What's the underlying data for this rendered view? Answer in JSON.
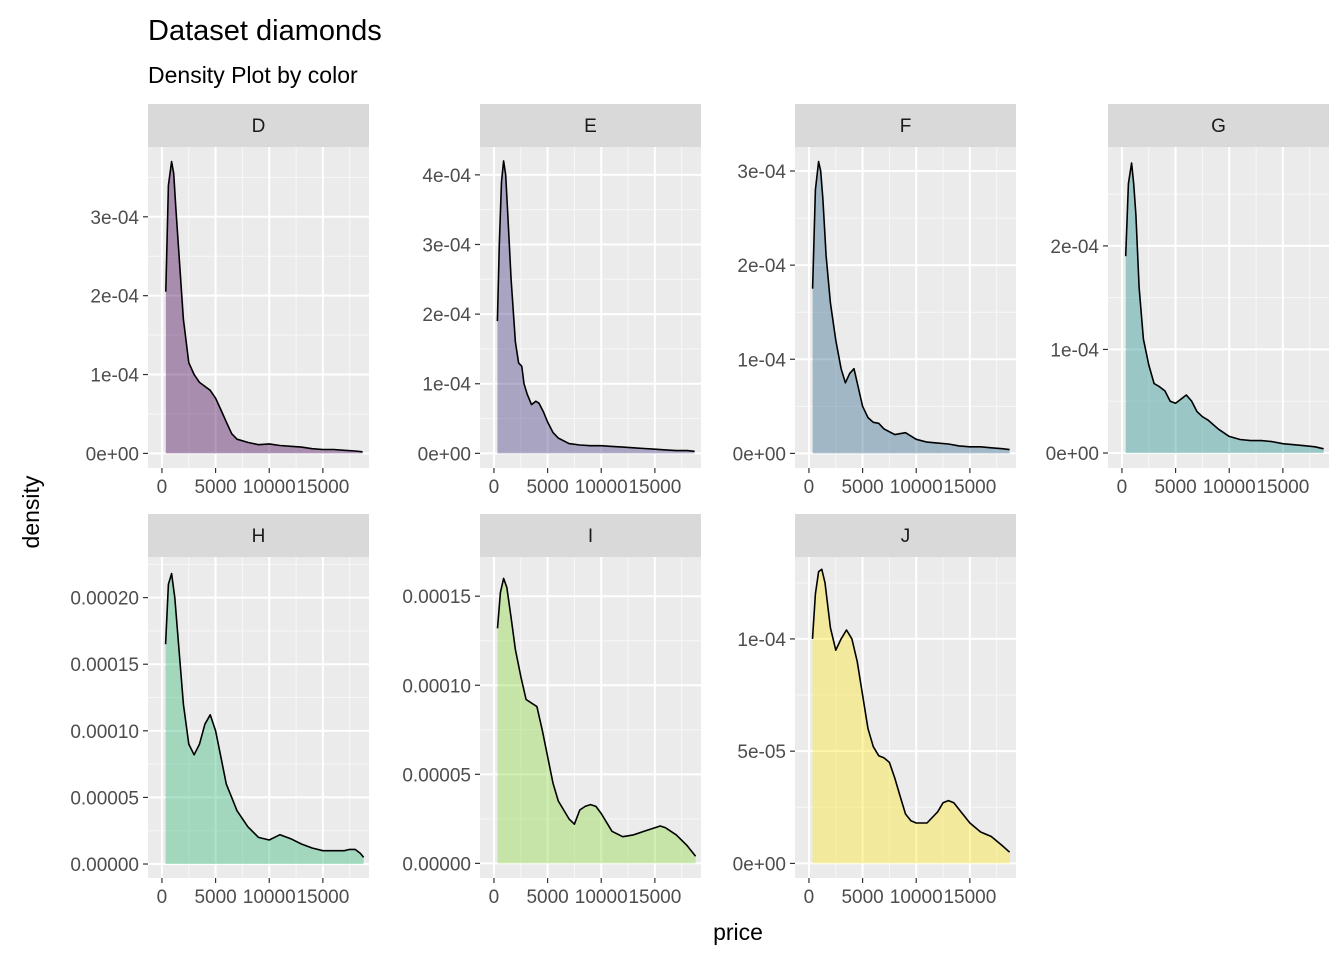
{
  "chart_data": {
    "type": "area",
    "title": "Dataset diamonds",
    "subtitle": "Density Plot by color",
    "xlabel": "price",
    "ylabel": "density",
    "xlim": [
      -1300,
      19300
    ],
    "x_ticks": [
      0,
      5000,
      10000,
      15000
    ],
    "x_tick_labels": [
      "0",
      "5000",
      "10000",
      "15000"
    ],
    "grid": true,
    "layout": "facet_wrap 2 rows x 4 columns, free y scales",
    "panels": [
      {
        "name": "D",
        "fill": "#440154",
        "ylim": [
          -1.85e-05,
          0.0003885
        ],
        "y_ticks": [
          0,
          0.0001,
          0.0002,
          0.0003
        ],
        "y_tick_labels": [
          "0e+00",
          "1e-04",
          "2e-04",
          "3e-04"
        ],
        "x": [
          357,
          600,
          900,
          1100,
          1300,
          1600,
          2000,
          2500,
          3000,
          3500,
          4000,
          4500,
          5000,
          5500,
          6000,
          6500,
          7000,
          8000,
          9000,
          10000,
          11000,
          12000,
          13000,
          14000,
          15000,
          16000,
          17000,
          18000,
          18700
        ],
        "y": [
          0.000205,
          0.00034,
          0.00037,
          0.000355,
          0.00031,
          0.00025,
          0.00017,
          0.000115,
          0.0001,
          9e-05,
          8.5e-05,
          8e-05,
          7e-05,
          5.5e-05,
          4e-05,
          2.5e-05,
          1.8e-05,
          1.4e-05,
          1.1e-05,
          1.2e-05,
          1e-05,
          9e-06,
          8e-06,
          6e-06,
          5e-06,
          5e-06,
          4e-06,
          3e-06,
          2e-06
        ]
      },
      {
        "name": "E",
        "fill": "#443A83",
        "ylim": [
          -2.1e-05,
          0.00044
        ],
        "y_ticks": [
          0,
          0.0001,
          0.0002,
          0.0003,
          0.0004
        ],
        "y_tick_labels": [
          "0e+00",
          "1e-04",
          "2e-04",
          "3e-04",
          "4e-04"
        ],
        "x": [
          326,
          500,
          700,
          900,
          1100,
          1300,
          1600,
          2000,
          2300,
          2600,
          2800,
          3100,
          3500,
          3900,
          4200,
          4600,
          5000,
          5500,
          6000,
          6500,
          7000,
          8000,
          9000,
          10000,
          11000,
          12000,
          13000,
          14000,
          15000,
          16000,
          17000,
          18000,
          18700
        ],
        "y": [
          0.00019,
          0.0003,
          0.00039,
          0.00042,
          0.0004,
          0.00034,
          0.00025,
          0.00016,
          0.00013,
          0.000125,
          0.0001,
          8.5e-05,
          7e-05,
          7.5e-05,
          7.2e-05,
          6e-05,
          4.5e-05,
          3e-05,
          2.2e-05,
          1.8e-05,
          1.4e-05,
          1.2e-05,
          1.1e-05,
          1.1e-05,
          1e-05,
          9e-06,
          8e-06,
          7e-06,
          6e-06,
          5e-06,
          4e-06,
          4e-06,
          3e-06
        ]
      },
      {
        "name": "F",
        "fill": "#31688E",
        "ylim": [
          -1.55e-05,
          0.0003255
        ],
        "y_ticks": [
          0,
          0.0001,
          0.0002,
          0.0003
        ],
        "y_tick_labels": [
          "0e+00",
          "1e-04",
          "2e-04",
          "3e-04"
        ],
        "x": [
          342,
          600,
          900,
          1100,
          1300,
          1600,
          2000,
          2500,
          3000,
          3400,
          3800,
          4200,
          4600,
          5000,
          5500,
          6000,
          6500,
          7000,
          8000,
          9000,
          10000,
          11000,
          12000,
          13000,
          14000,
          15000,
          16000,
          17000,
          18000,
          18700
        ],
        "y": [
          0.000175,
          0.00028,
          0.00031,
          0.0003,
          0.00027,
          0.00021,
          0.00016,
          0.00012,
          9e-05,
          7.5e-05,
          8.5e-05,
          9e-05,
          7e-05,
          5e-05,
          3.8e-05,
          3.3e-05,
          3.2e-05,
          2.6e-05,
          2e-05,
          2.2e-05,
          1.5e-05,
          1.2e-05,
          1.1e-05,
          1e-05,
          8e-06,
          7e-06,
          7e-06,
          6e-06,
          5e-06,
          4e-06
        ]
      },
      {
        "name": "G",
        "fill": "#21908C",
        "ylim": [
          -1.45e-05,
          0.0002955
        ],
        "y_ticks": [
          0,
          0.0001,
          0.0002
        ],
        "y_tick_labels": [
          "0e+00",
          "1e-04",
          "2e-04"
        ],
        "x": [
          354,
          600,
          900,
          1100,
          1300,
          1600,
          2000,
          2500,
          3000,
          3500,
          4000,
          4500,
          5000,
          5500,
          6000,
          6500,
          7000,
          7500,
          8000,
          9000,
          10000,
          11000,
          12000,
          13000,
          14000,
          15000,
          16000,
          17000,
          18000,
          18800
        ],
        "y": [
          0.00019,
          0.00026,
          0.00028,
          0.00026,
          0.00023,
          0.00016,
          0.00011,
          8.5e-05,
          6.7e-05,
          6.4e-05,
          6e-05,
          5e-05,
          4.8e-05,
          5.2e-05,
          5.6e-05,
          5e-05,
          4e-05,
          3.5e-05,
          3.2e-05,
          2.3e-05,
          1.6e-05,
          1.3e-05,
          1.2e-05,
          1.2e-05,
          1.1e-05,
          9e-06,
          8e-06,
          7e-06,
          6e-06,
          4e-06
        ]
      },
      {
        "name": "H",
        "fill": "#35B779",
        "ylim": [
          -1.05e-05,
          0.0002305
        ],
        "y_ticks": [
          0,
          5e-05,
          0.0001,
          0.00015,
          0.0002
        ],
        "y_tick_labels": [
          "0.00000",
          "0.00005",
          "0.00010",
          "0.00015",
          "0.00020"
        ],
        "x": [
          337,
          600,
          900,
          1200,
          1600,
          2000,
          2500,
          3000,
          3500,
          4000,
          4500,
          5000,
          5500,
          6000,
          6500,
          7000,
          8000,
          9000,
          10000,
          11000,
          12000,
          13000,
          14000,
          15000,
          16000,
          17000,
          17500,
          18000,
          18500,
          18800
        ],
        "y": [
          0.000165,
          0.00021,
          0.000218,
          0.0002,
          0.00016,
          0.00012,
          9e-05,
          8.2e-05,
          9e-05,
          0.000105,
          0.000112,
          0.0001,
          8e-05,
          6e-05,
          5e-05,
          4e-05,
          2.8e-05,
          2e-05,
          1.8e-05,
          2.2e-05,
          1.9e-05,
          1.5e-05,
          1.2e-05,
          1e-05,
          1e-05,
          1e-05,
          1.1e-05,
          1.1e-05,
          8e-06,
          5e-06
        ]
      },
      {
        "name": "I",
        "fill": "#8FD744",
        "ylim": [
          -8.2e-06,
          0.000172
        ],
        "y_ticks": [
          0,
          5e-05,
          0.0001,
          0.00015
        ],
        "y_tick_labels": [
          "0.00000",
          "0.00005",
          "0.00010",
          "0.00015"
        ],
        "x": [
          334,
          600,
          900,
          1200,
          1600,
          2000,
          2500,
          3000,
          3500,
          4000,
          4500,
          5000,
          5500,
          6000,
          6500,
          7000,
          7500,
          8000,
          8500,
          9000,
          9500,
          10000,
          11000,
          12000,
          13000,
          14000,
          15000,
          15500,
          16000,
          17000,
          18000,
          18800
        ],
        "y": [
          0.000132,
          0.000152,
          0.00016,
          0.000155,
          0.000138,
          0.00012,
          0.000105,
          9.2e-05,
          9e-05,
          8.8e-05,
          7.5e-05,
          6e-05,
          4.5e-05,
          3.5e-05,
          3e-05,
          2.5e-05,
          2.2e-05,
          3e-05,
          3.2e-05,
          3.3e-05,
          3.2e-05,
          2.8e-05,
          1.8e-05,
          1.5e-05,
          1.6e-05,
          1.8e-05,
          2e-05,
          2.1e-05,
          2e-05,
          1.6e-05,
          1e-05,
          4e-06
        ]
      },
      {
        "name": "J",
        "fill": "#FDE725",
        "ylim": [
          -6.5e-06,
          0.0001365
        ],
        "y_ticks": [
          0,
          5e-05,
          0.0001
        ],
        "y_tick_labels": [
          "0e+00",
          "5e-05",
          "1e-04"
        ],
        "x": [
          335,
          600,
          900,
          1200,
          1500,
          2000,
          2500,
          3000,
          3500,
          4000,
          4500,
          5000,
          5500,
          6000,
          6500,
          7000,
          7500,
          8000,
          8500,
          9000,
          9500,
          10000,
          11000,
          12000,
          12500,
          13000,
          13500,
          14000,
          15000,
          16000,
          17000,
          18000,
          18700
        ],
        "y": [
          0.0001,
          0.00012,
          0.00013,
          0.000131,
          0.000125,
          0.000105,
          9.5e-05,
          0.0001,
          0.000104,
          0.0001,
          9e-05,
          7.5e-05,
          6e-05,
          5.2e-05,
          4.8e-05,
          4.7e-05,
          4.5e-05,
          3.8e-05,
          3e-05,
          2.2e-05,
          1.9e-05,
          1.8e-05,
          1.8e-05,
          2.3e-05,
          2.7e-05,
          2.8e-05,
          2.7e-05,
          2.4e-05,
          1.8e-05,
          1.4e-05,
          1.2e-05,
          8e-06,
          5e-06
        ]
      }
    ]
  }
}
